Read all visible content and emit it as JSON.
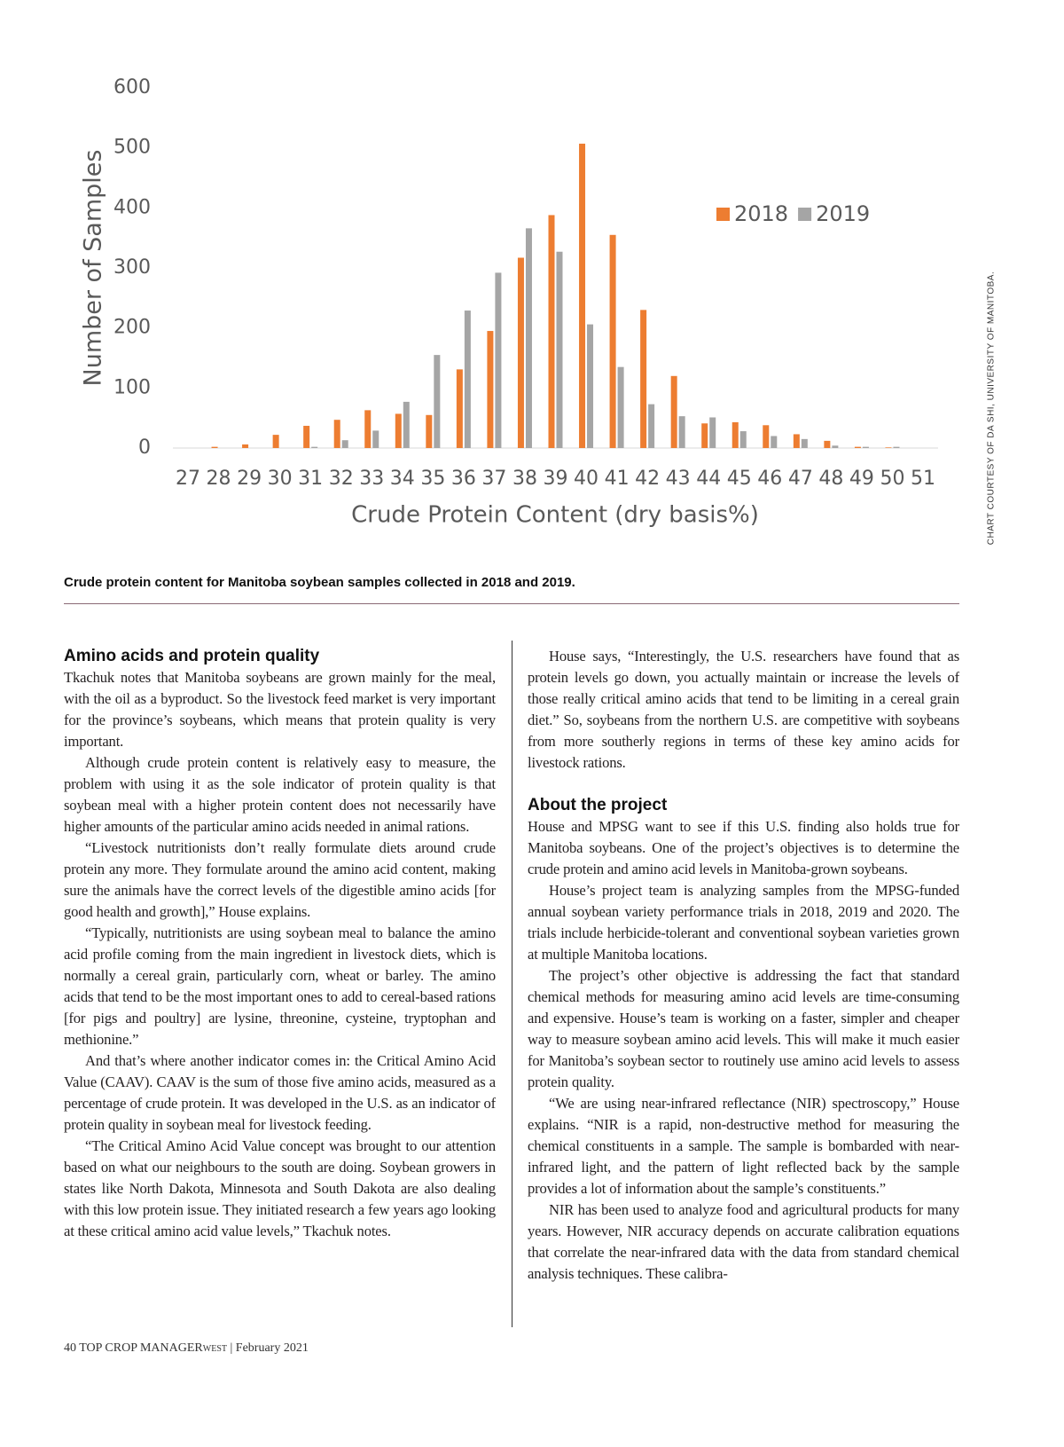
{
  "chart_data": {
    "type": "bar",
    "y_label": "Number of Samples",
    "x_label": "Crude Protein Content (dry basis%)",
    "categories": [
      "27",
      "28",
      "29",
      "30",
      "31",
      "32",
      "33",
      "34",
      "35",
      "36",
      "37",
      "38",
      "39",
      "40",
      "41",
      "42",
      "43",
      "44",
      "45",
      "46",
      "47",
      "48",
      "49",
      "50",
      "51"
    ],
    "series": [
      {
        "name": "2018",
        "color": "#ed7d31",
        "values": [
          0,
          2,
          6,
          22,
          37,
          47,
          63,
          57,
          55,
          131,
          195,
          317,
          388,
          507,
          355,
          230,
          120,
          41,
          43,
          38,
          23,
          12,
          2,
          1,
          0
        ]
      },
      {
        "name": "2019",
        "color": "#a5a5a5",
        "values": [
          0,
          0,
          0,
          0,
          2,
          13,
          29,
          77,
          155,
          229,
          292,
          366,
          327,
          206,
          135,
          73,
          53,
          51,
          28,
          20,
          15,
          4,
          2,
          2,
          0
        ]
      }
    ],
    "ylim": [
      0,
      600
    ],
    "yticks": [
      0,
      100,
      200,
      300,
      400,
      500,
      600
    ],
    "grid": false,
    "legend": "upper right"
  },
  "credit": "CHART COURTESY OF DA SHI, UNIVERSITY OF MANITOBA.",
  "caption": "Crude protein content for Manitoba soybean samples collected in 2018 and 2019.",
  "left_column": {
    "heading": "Amino acids and protein quality",
    "paragraphs": [
      "Tkachuk notes that Manitoba soybeans are grown mainly for the meal, with the oil as a byproduct. So the livestock feed market is very important for the province’s soybeans, which means that protein quality is very important.",
      "Although crude protein content is relatively easy to measure, the problem with using it as the sole indicator of protein quality is that soybean meal with a higher protein content does not necessarily have higher amounts of the particular amino acids needed in animal rations.",
      "“Livestock nutritionists don’t really formulate diets around crude protein any more. They formulate around the amino acid content, making sure the animals have the correct levels of the digestible amino acids [for good health and growth],” House explains.",
      "“Typically, nutritionists are using soybean meal to balance the amino acid profile coming from the main ingredient in livestock diets, which is normally a cereal grain, particularly corn, wheat or barley. The amino acids that tend to be the most important ones to add to cereal-based rations [for pigs and poultry] are lysine, threonine, cysteine, tryptophan and methionine.”",
      "And that’s where another indicator comes in: the Critical Amino Acid Value (CAAV). CAAV is the sum of those five amino acids, measured as a percentage of crude protein. It was developed in the U.S. as an indicator of protein quality in soybean meal for livestock feeding.",
      "“The Critical Amino Acid Value concept was brought to our attention based on what our neighbours to the south are doing. Soybean growers in states like North Dakota, Minnesota and South Dakota are also dealing with this low protein issue. They initiated research a few years ago looking at these critical amino acid value levels,” Tkachuk notes."
    ]
  },
  "right_column": {
    "paragraphs_before": [
      "House says, “Interestingly, the U.S. researchers have found that as protein levels go down, you actually maintain or increase the levels of those really critical amino acids that tend to be limiting in a cereal grain diet.” So, soybeans from the northern U.S. are competitive with soybeans from more southerly regions in terms of these key amino acids for livestock rations."
    ],
    "heading": "About the project",
    "paragraphs_after": [
      "House and MPSG want to see if this U.S. finding also holds true for Manitoba soybeans. One of the project’s objectives is to determine the crude protein and amino acid levels in Manitoba-grown soybeans.",
      "House’s project team is analyzing samples from the MPSG-funded annual soybean variety performance trials in 2018, 2019 and 2020. The trials include herbicide-tolerant and conventional soybean varieties grown at multiple Manitoba locations.",
      "The project’s other objective is addressing the fact that standard chemical methods for measuring amino acid levels are time-consuming and expensive. House’s team is working on a faster, simpler and cheaper way to measure soybean amino acid levels. This will make it much easier for Manitoba’s soybean sector to routinely use amino acid levels to assess protein quality.",
      "“We are using near-infrared reflectance (NIR) spectroscopy,” House explains. “NIR is a rapid, non-destructive method for measuring the chemical constituents in a sample. The sample is bombarded with near-infrared light, and the pattern of light reflected back by the sample provides a lot of information about the sample’s constituents.”",
      "NIR has been used to analyze food and agricultural products for many years. However, NIR accuracy depends on accurate calibration equations that correlate the near-infrared data with the data from standard chemical analysis techniques. These calibra-"
    ]
  },
  "footer": {
    "page": "40",
    "magazine": "TOP CROP MANAGER",
    "edition": "WEST",
    "issue": "| February 2021"
  }
}
